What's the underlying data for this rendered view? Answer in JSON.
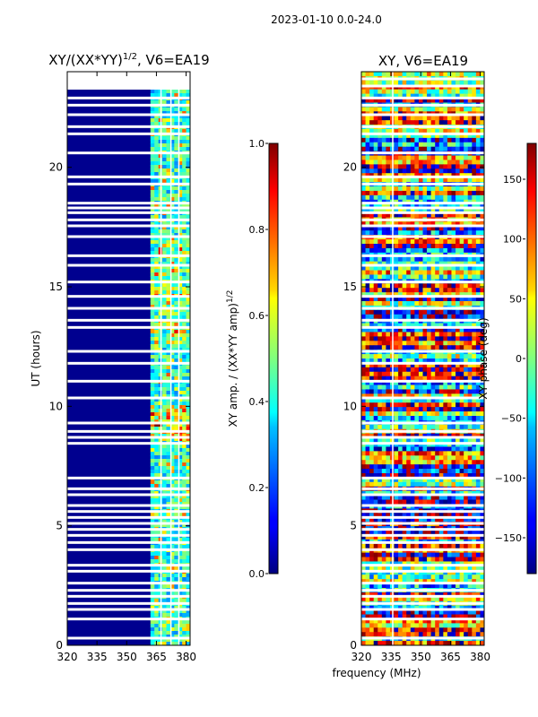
{
  "suptitle": "2023-01-10 0.0-24.0",
  "shared_xlabel": "frequency (MHz)",
  "chart_data": [
    {
      "type": "heatmap",
      "title_main": "XY/(XX*YY)",
      "title_sup": "1/2",
      "title_tail": ", V6=EA19",
      "ylabel": "UT (hours)",
      "xlim": [
        320,
        382
      ],
      "ylim": [
        0,
        24
      ],
      "xticks": [
        320,
        335,
        350,
        365,
        380
      ],
      "yticks": [
        0,
        5,
        10,
        15,
        20
      ],
      "colorbar": {
        "label_main": "XY amp. / (XX*YY amp)",
        "label_sup": "1/2",
        "range": [
          0.0,
          1.0
        ],
        "ticks": [
          0.0,
          0.2,
          0.4,
          0.6,
          0.8,
          1.0
        ],
        "tick_labels": [
          "0.0",
          "0.2",
          "0.4",
          "0.6",
          "0.8",
          "1.0"
        ],
        "colormap": "jet"
      },
      "bright_band_mhz": [
        362,
        381
      ],
      "flagged_ut_hours": [
        0.3,
        1.1,
        1.5,
        1.75,
        2.05,
        2.3,
        2.6,
        3.1,
        3.35,
        4.0,
        4.3,
        4.6,
        4.85,
        5.1,
        5.35,
        5.6,
        5.85,
        6.3,
        6.55,
        7.0,
        8.45,
        8.7,
        8.95,
        9.3,
        10.35,
        11.05,
        11.8,
        12.3,
        13.3,
        13.6,
        14.1,
        14.6,
        15.2,
        15.9,
        16.3,
        17.1,
        17.55,
        17.8,
        18.1,
        18.3,
        18.5,
        19.3,
        19.6,
        20.6,
        21.4,
        21.7,
        22.2,
        22.6,
        22.9,
        23.4,
        23.7
      ]
    },
    {
      "type": "heatmap",
      "title": "XY, V6=EA19",
      "xlim": [
        320,
        382
      ],
      "ylim": [
        0,
        24
      ],
      "xticks": [
        320,
        335,
        350,
        365,
        380
      ],
      "yticks": [
        0,
        5,
        10,
        15,
        20
      ],
      "colorbar": {
        "label": "XY phase (deg)",
        "range": [
          -180,
          180
        ],
        "ticks": [
          -150,
          -100,
          -50,
          0,
          50,
          100,
          150
        ],
        "tick_labels": [
          "−150",
          "−100",
          "−50",
          "0",
          "50",
          "100",
          "150"
        ],
        "colormap": "jet"
      },
      "flagged_ut_hours": [
        0.3,
        1.1,
        1.5,
        1.75,
        2.05,
        2.3,
        2.6,
        3.1,
        3.35,
        4.0,
        4.3,
        4.6,
        4.85,
        5.1,
        5.35,
        5.6,
        5.85,
        6.3,
        6.55,
        7.0,
        8.45,
        8.7,
        8.95,
        9.3,
        10.35,
        11.05,
        11.8,
        12.3,
        13.3,
        13.6,
        14.1,
        14.6,
        15.2,
        15.9,
        16.3,
        17.1,
        17.55,
        17.8,
        18.1,
        18.3,
        18.5,
        19.3,
        19.6,
        20.6,
        21.4,
        21.7,
        22.2,
        22.6,
        22.9,
        23.4,
        23.7
      ]
    }
  ]
}
